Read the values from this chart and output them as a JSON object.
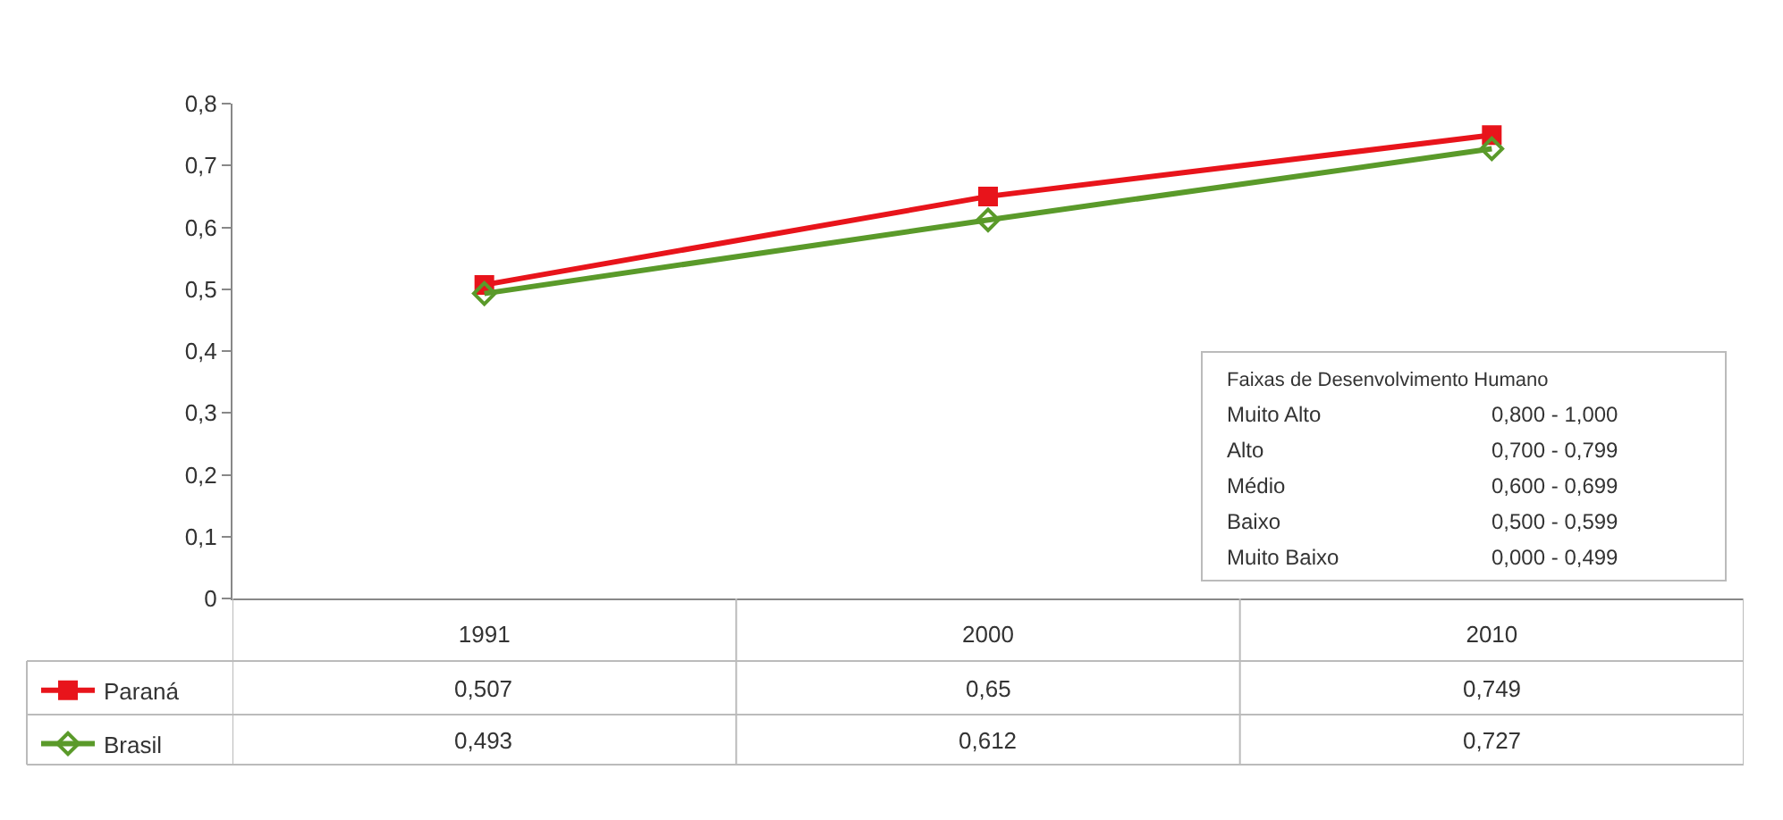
{
  "chart_data": {
    "type": "line",
    "categories": [
      "1991",
      "2000",
      "2010"
    ],
    "series": [
      {
        "name": "Paraná",
        "color": "#e8141b",
        "values": [
          0.507,
          0.65,
          0.749
        ],
        "marker": "square",
        "value_labels": [
          "0,507",
          "0,65",
          "0,749"
        ]
      },
      {
        "name": "Brasil",
        "color": "#5a9a2a",
        "values": [
          0.493,
          0.612,
          0.727
        ],
        "marker": "diamond",
        "value_labels": [
          "0,493",
          "0,612",
          "0,727"
        ]
      }
    ],
    "ylim": [
      0,
      0.8
    ],
    "yticks": [
      0,
      {
        "value": 0.1,
        "label": "0,1"
      },
      {
        "value": 0.2,
        "label": "0,2"
      },
      {
        "value": 0.3,
        "label": "0,3"
      },
      {
        "value": 0.4,
        "label": "0,4"
      },
      {
        "value": 0.5,
        "label": "0,5"
      },
      {
        "value": 0.6,
        "label": "0,6"
      },
      {
        "value": 0.7,
        "label": "0,7"
      },
      {
        "value": 0.8,
        "label": "0,8"
      }
    ],
    "grid": false,
    "legend": "bottom left",
    "line_style": "solid",
    "annotations": [
      "Faixas de Desenvolvimento Humano",
      "Muito Alto",
      "0,800 - 1,000",
      "Alto",
      "0,700 - 0,799",
      "Médio",
      "0,600 - 0,699",
      "Baixo",
      "0,500 - 0,599",
      "Muito Baixo",
      "0,000 - 0,499"
    ]
  }
}
